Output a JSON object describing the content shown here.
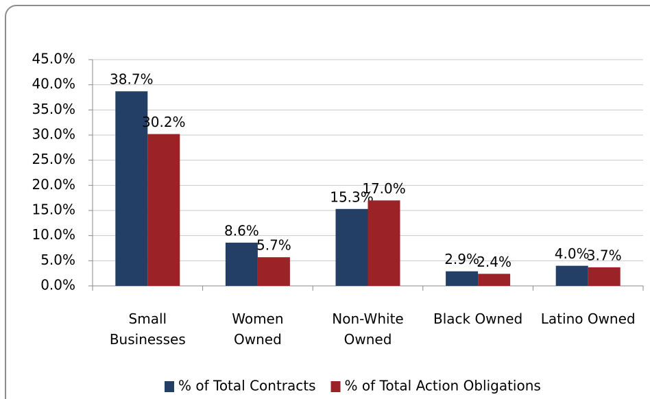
{
  "chart_data": {
    "type": "bar",
    "categories": [
      "Small\nBusinesses",
      "Women\nOwned",
      "Non-White\nOwned",
      "Black Owned",
      "Latino Owned"
    ],
    "series": [
      {
        "name": "% of Total Contracts",
        "color": "#243f66",
        "values": [
          38.7,
          8.6,
          15.3,
          2.9,
          4.0
        ],
        "value_labels": [
          "38.7%",
          "8.6%",
          "15.3%",
          "2.9%",
          "4.0%"
        ]
      },
      {
        "name": "% of Total Action Obligations",
        "color": "#9b2226",
        "values": [
          30.2,
          5.7,
          17.0,
          2.4,
          3.7
        ],
        "value_labels": [
          "30.2%",
          "5.7%",
          "17.0%",
          "2.4%",
          "3.7%"
        ]
      }
    ],
    "ylim": [
      0,
      45
    ],
    "yticks": [
      {
        "value": 0,
        "label": "0.0%"
      },
      {
        "value": 5,
        "label": "5.0%"
      },
      {
        "value": 10,
        "label": "10.0%"
      },
      {
        "value": 15,
        "label": "15.0%"
      },
      {
        "value": 20,
        "label": "20.0%"
      },
      {
        "value": 25,
        "label": "25.0%"
      },
      {
        "value": 30,
        "label": "30.0%"
      },
      {
        "value": 35,
        "label": "35.0%"
      },
      {
        "value": 40,
        "label": "40.0%"
      },
      {
        "value": 45,
        "label": "45.0%"
      }
    ],
    "grid": true,
    "legend": "bottom"
  }
}
